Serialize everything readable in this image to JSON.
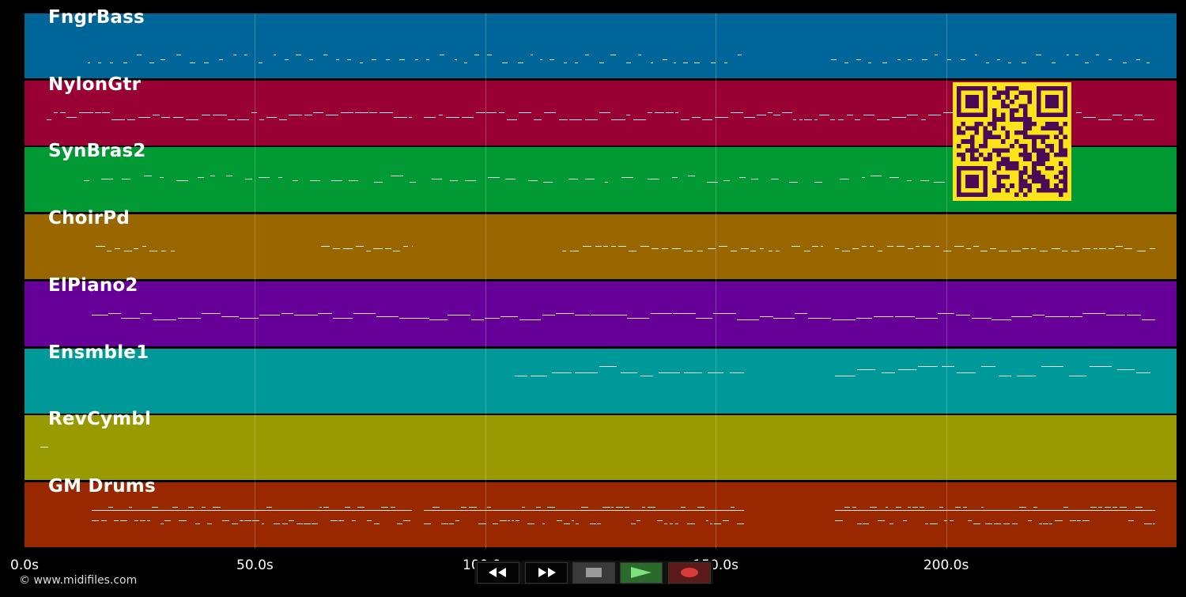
{
  "colors": {
    "background": "#000000",
    "tracks": [
      "#006699",
      "#990033",
      "#009933",
      "#996600",
      "#660099",
      "#009999",
      "#999900",
      "#992800"
    ],
    "qr_foreground": "#4a0a55",
    "qr_background": "#ffe31a"
  },
  "tracks": [
    {
      "name": "FngrBass"
    },
    {
      "name": "NylonGtr"
    },
    {
      "name": "SynBras2"
    },
    {
      "name": "ChoirPd"
    },
    {
      "name": "ElPiano2"
    },
    {
      "name": "Ensmble1"
    },
    {
      "name": "RevCymbl"
    },
    {
      "name": "GM Drums"
    }
  ],
  "timeline": {
    "seconds_range": [
      0,
      250
    ],
    "ticks": [
      {
        "value": 0,
        "label": "0.0s"
      },
      {
        "value": 50,
        "label": "50.0s"
      },
      {
        "value": 100,
        "label": "100.0s"
      },
      {
        "value": 150,
        "label": "150.0s"
      },
      {
        "value": 200,
        "label": "200.0s"
      }
    ]
  },
  "transport": {
    "rewind": "rewind-icon",
    "fast_forward": "fast-forward-icon",
    "stop": "stop-icon",
    "play": "play-icon",
    "record": "record-icon"
  },
  "footer": {
    "copyright": "© www.midifiles.com"
  }
}
